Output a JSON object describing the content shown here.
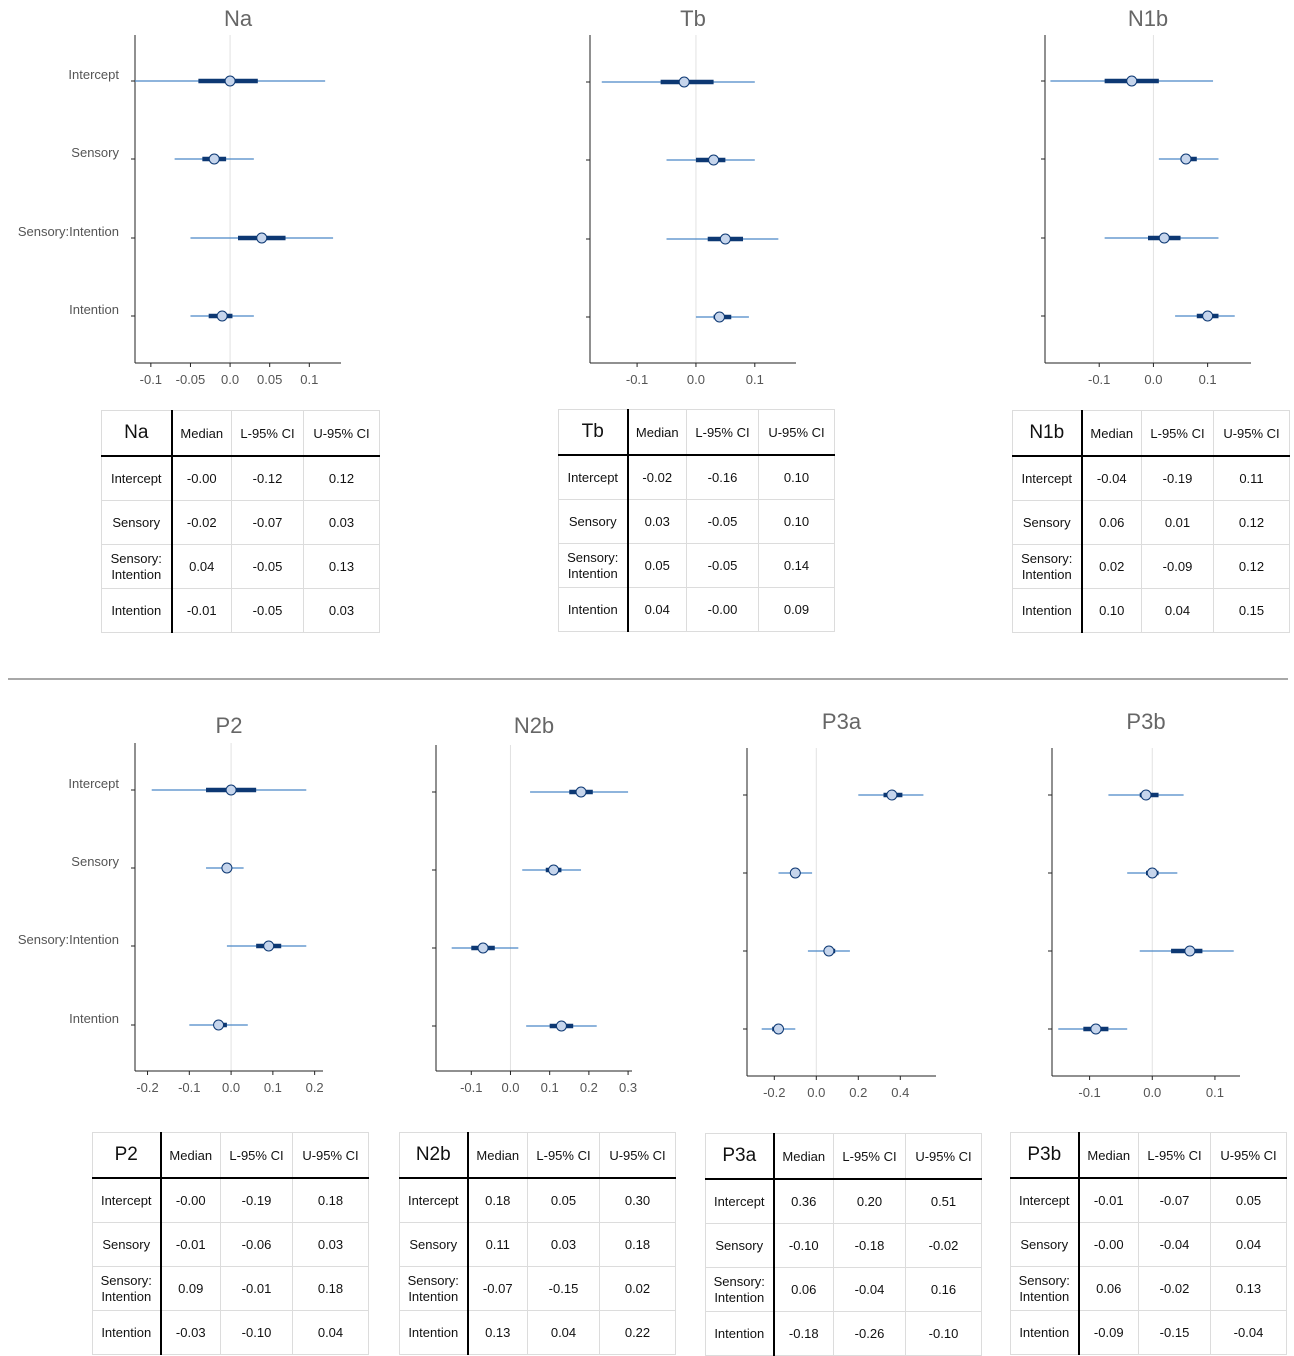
{
  "header_labels": {
    "median": "Median",
    "lower": "L-95% CI",
    "upper": "U-95% CI"
  },
  "chart_data": [
    {
      "type": "forest",
      "title": "Na",
      "categories": [
        "Intercept",
        "Sensory",
        "Sensory:Intention",
        "Intention"
      ],
      "xticks": [
        "-0.1",
        "-0.05",
        "0.0",
        "0.05",
        "0.1"
      ],
      "xlim": [
        -0.12,
        0.14
      ],
      "median": [
        -0.0,
        -0.02,
        0.04,
        -0.01
      ],
      "inner50": [
        [
          -0.04,
          0.035
        ],
        [
          -0.035,
          -0.005
        ],
        [
          0.01,
          0.07
        ],
        [
          -0.027,
          0.003
        ]
      ],
      "lower95": [
        -0.12,
        -0.07,
        -0.05,
        -0.05
      ],
      "upper95": [
        0.12,
        0.03,
        0.13,
        0.03
      ],
      "show_ylabels": true
    },
    {
      "type": "forest",
      "title": "Tb",
      "categories": [
        "Intercept",
        "Sensory",
        "Sensory:Intention",
        "Intention"
      ],
      "xticks": [
        "-0.1",
        "0.0",
        "0.1"
      ],
      "xlim": [
        -0.18,
        0.17
      ],
      "median": [
        -0.02,
        0.03,
        0.05,
        0.04
      ],
      "inner50": [
        [
          -0.06,
          0.03
        ],
        [
          0.0,
          0.05
        ],
        [
          0.02,
          0.08
        ],
        [
          0.03,
          0.06
        ]
      ],
      "lower95": [
        -0.16,
        -0.05,
        -0.05,
        -0.0
      ],
      "upper95": [
        0.1,
        0.1,
        0.14,
        0.09
      ],
      "show_ylabels": false
    },
    {
      "type": "forest",
      "title": "N1b",
      "categories": [
        "Intercept",
        "Sensory",
        "Sensory:Intention",
        "Intention"
      ],
      "xticks": [
        "-0.1",
        "0.0",
        "0.1"
      ],
      "xlim": [
        -0.2,
        0.18
      ],
      "median": [
        -0.04,
        0.06,
        0.02,
        0.1
      ],
      "inner50": [
        [
          -0.09,
          0.01
        ],
        [
          0.05,
          0.08
        ],
        [
          -0.01,
          0.05
        ],
        [
          0.08,
          0.12
        ]
      ],
      "lower95": [
        -0.19,
        0.01,
        -0.09,
        0.04
      ],
      "upper95": [
        0.11,
        0.12,
        0.12,
        0.15
      ],
      "show_ylabels": false
    },
    {
      "type": "forest",
      "title": "P2",
      "categories": [
        "Intercept",
        "Sensory",
        "Sensory:Intention",
        "Intention"
      ],
      "xticks": [
        "-0.2",
        "-0.1",
        "0.0",
        "0.1",
        "0.2"
      ],
      "xlim": [
        -0.23,
        0.22
      ],
      "median": [
        -0.0,
        -0.01,
        0.09,
        -0.03
      ],
      "inner50": [
        [
          -0.06,
          0.06
        ],
        [
          -0.02,
          0.0
        ],
        [
          0.06,
          0.12
        ],
        [
          -0.04,
          -0.01
        ]
      ],
      "lower95": [
        -0.19,
        -0.06,
        -0.01,
        -0.1
      ],
      "upper95": [
        0.18,
        0.03,
        0.18,
        0.04
      ],
      "show_ylabels": true
    },
    {
      "type": "forest",
      "title": "N2b",
      "categories": [
        "Intercept",
        "Sensory",
        "Sensory:Intention",
        "Intention"
      ],
      "xticks": [
        "-0.1",
        "0.0",
        "0.1",
        "0.2",
        "0.3"
      ],
      "xlim": [
        -0.19,
        0.31
      ],
      "median": [
        0.18,
        0.11,
        -0.07,
        0.13
      ],
      "inner50": [
        [
          0.15,
          0.21
        ],
        [
          0.09,
          0.13
        ],
        [
          -0.1,
          -0.04
        ],
        [
          0.1,
          0.16
        ]
      ],
      "lower95": [
        0.05,
        0.03,
        -0.15,
        0.04
      ],
      "upper95": [
        0.3,
        0.18,
        0.02,
        0.22
      ],
      "show_ylabels": false
    },
    {
      "type": "forest",
      "title": "P3a",
      "categories": [
        "Intercept",
        "Sensory",
        "Sensory:Intention",
        "Intention"
      ],
      "xticks": [
        "-0.2",
        "0.0",
        "0.2",
        "0.4"
      ],
      "xlim": [
        -0.33,
        0.57
      ],
      "median": [
        0.36,
        -0.1,
        0.06,
        -0.18
      ],
      "inner50": [
        [
          0.32,
          0.41
        ],
        [
          -0.12,
          -0.08
        ],
        [
          0.04,
          0.09
        ],
        [
          -0.21,
          -0.16
        ]
      ],
      "lower95": [
        0.2,
        -0.18,
        -0.04,
        -0.26
      ],
      "upper95": [
        0.51,
        -0.02,
        0.16,
        -0.1
      ],
      "show_ylabels": false
    },
    {
      "type": "forest",
      "title": "P3b",
      "categories": [
        "Intercept",
        "Sensory",
        "Sensory:Intention",
        "Intention"
      ],
      "xticks": [
        "-0.1",
        "0.0",
        "0.1"
      ],
      "xlim": [
        -0.16,
        0.14
      ],
      "median": [
        -0.01,
        -0.0,
        0.06,
        -0.09
      ],
      "inner50": [
        [
          -0.02,
          0.01
        ],
        [
          -0.01,
          0.01
        ],
        [
          0.03,
          0.08
        ],
        [
          -0.11,
          -0.07
        ]
      ],
      "lower95": [
        -0.07,
        -0.04,
        -0.02,
        -0.15
      ],
      "upper95": [
        0.05,
        0.04,
        0.13,
        -0.04
      ],
      "show_ylabels": false
    }
  ],
  "tables": [
    {
      "name": "Na",
      "rows": [
        {
          "label": [
            "Intercept"
          ],
          "median": "-0.00",
          "lower": "-0.12",
          "upper": "0.12"
        },
        {
          "label": [
            "Sensory"
          ],
          "median": "-0.02",
          "lower": "-0.07",
          "upper": "0.03"
        },
        {
          "label": [
            "Sensory:",
            "Intention"
          ],
          "median": "0.04",
          "lower": "-0.05",
          "upper": "0.13"
        },
        {
          "label": [
            "Intention"
          ],
          "median": "-0.01",
          "lower": "-0.05",
          "upper": "0.03"
        }
      ]
    },
    {
      "name": "Tb",
      "rows": [
        {
          "label": [
            "Intercept"
          ],
          "median": "-0.02",
          "lower": "-0.16",
          "upper": "0.10"
        },
        {
          "label": [
            "Sensory"
          ],
          "median": "0.03",
          "lower": "-0.05",
          "upper": "0.10"
        },
        {
          "label": [
            "Sensory:",
            "Intention"
          ],
          "median": "0.05",
          "lower": "-0.05",
          "upper": "0.14"
        },
        {
          "label": [
            "Intention"
          ],
          "median": "0.04",
          "lower": "-0.00",
          "upper": "0.09"
        }
      ]
    },
    {
      "name": "N1b",
      "rows": [
        {
          "label": [
            "Intercept"
          ],
          "median": "-0.04",
          "lower": "-0.19",
          "upper": "0.11"
        },
        {
          "label": [
            "Sensory"
          ],
          "median": "0.06",
          "lower": "0.01",
          "upper": "0.12"
        },
        {
          "label": [
            "Sensory:",
            "Intention"
          ],
          "median": "0.02",
          "lower": "-0.09",
          "upper": "0.12"
        },
        {
          "label": [
            "Intention"
          ],
          "median": "0.10",
          "lower": "0.04",
          "upper": "0.15"
        }
      ]
    },
    {
      "name": "P2",
      "rows": [
        {
          "label": [
            "Intercept"
          ],
          "median": "-0.00",
          "lower": "-0.19",
          "upper": "0.18"
        },
        {
          "label": [
            "Sensory"
          ],
          "median": "-0.01",
          "lower": "-0.06",
          "upper": "0.03"
        },
        {
          "label": [
            "Sensory:",
            "Intention"
          ],
          "median": "0.09",
          "lower": "-0.01",
          "upper": "0.18"
        },
        {
          "label": [
            "Intention"
          ],
          "median": "-0.03",
          "lower": "-0.10",
          "upper": "0.04"
        }
      ]
    },
    {
      "name": "N2b",
      "rows": [
        {
          "label": [
            "Intercept"
          ],
          "median": "0.18",
          "lower": "0.05",
          "upper": "0.30"
        },
        {
          "label": [
            "Sensory"
          ],
          "median": "0.11",
          "lower": "0.03",
          "upper": "0.18"
        },
        {
          "label": [
            "Sensory:",
            "Intention"
          ],
          "median": "-0.07",
          "lower": "-0.15",
          "upper": "0.02"
        },
        {
          "label": [
            "Intention"
          ],
          "median": "0.13",
          "lower": "0.04",
          "upper": "0.22"
        }
      ]
    },
    {
      "name": "P3a",
      "rows": [
        {
          "label": [
            "Intercept"
          ],
          "median": "0.36",
          "lower": "0.20",
          "upper": "0.51"
        },
        {
          "label": [
            "Sensory"
          ],
          "median": "-0.10",
          "lower": "-0.18",
          "upper": "-0.02"
        },
        {
          "label": [
            "Sensory:",
            "Intention"
          ],
          "median": "0.06",
          "lower": "-0.04",
          "upper": "0.16"
        },
        {
          "label": [
            "Intention"
          ],
          "median": "-0.18",
          "lower": "-0.26",
          "upper": "-0.10"
        }
      ]
    },
    {
      "name": "P3b",
      "rows": [
        {
          "label": [
            "Intercept"
          ],
          "median": "-0.01",
          "lower": "-0.07",
          "upper": "0.05"
        },
        {
          "label": [
            "Sensory"
          ],
          "median": "-0.00",
          "lower": "-0.04",
          "upper": "0.04"
        },
        {
          "label": [
            "Sensory:",
            "Intention"
          ],
          "median": "0.06",
          "lower": "-0.02",
          "upper": "0.13"
        },
        {
          "label": [
            "Intention"
          ],
          "median": "-0.09",
          "lower": "-0.15",
          "upper": "-0.04"
        }
      ]
    }
  ],
  "colors": {
    "thin": "#4a88c7",
    "thick": "#0d3873",
    "point_fill": "#c6d5ec",
    "point_stroke": "#0d3873",
    "title": "#666666",
    "axis_text": "#555555",
    "zero_line": "#e2e2e2"
  }
}
